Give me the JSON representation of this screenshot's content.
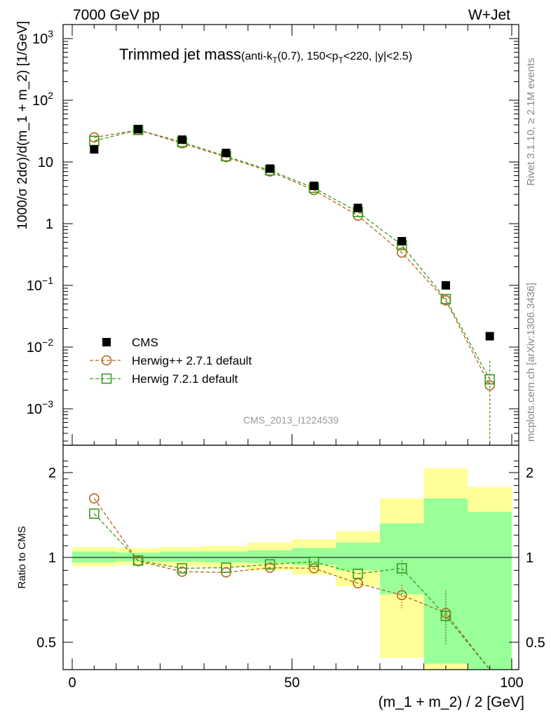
{
  "header": {
    "left": "7000 GeV pp",
    "right": "W+Jet"
  },
  "title": {
    "main": "Trimmed jet mass",
    "sub": "(anti-k",
    "sub_T": "T",
    "sub_rest1": "(0.7), 150<p",
    "sub_T2": "T",
    "sub_rest2": "<220, |y|<2.5)"
  },
  "side_labels": {
    "rivet": "Rivet 3.1.10, ≥ 2.1M events",
    "mcplots": "mcplots.cern.ch [arXiv:1306.3436]"
  },
  "analysis_id": "CMS_2013_I1224539",
  "axes": {
    "ylabel_top": "1000/σ 2dσ)/d(m_1 + m_2) [1/GeV]",
    "ylabel_ratio": "Ratio to CMS",
    "xlabel": "(m_1 + m_2) / 2 [GeV]",
    "x_ticks": [
      "0",
      "50",
      "100"
    ],
    "y_top_ticks": [
      {
        "base": "10",
        "exp": "3",
        "v": 1000
      },
      {
        "base": "10",
        "exp": "2",
        "v": 100
      },
      {
        "base": "10",
        "exp": "",
        "v": 10
      },
      {
        "base": "1",
        "exp": "",
        "v": 1
      },
      {
        "base": "10",
        "exp": "−1",
        "v": 0.1
      },
      {
        "base": "10",
        "exp": "−2",
        "v": 0.01
      },
      {
        "base": "10",
        "exp": "−3",
        "v": 0.001
      }
    ],
    "y_ratio_ticks": [
      "2",
      "1",
      "0.5"
    ]
  },
  "legend": [
    {
      "label": "CMS",
      "marker": "square-filled",
      "color": "#000000"
    },
    {
      "label": "Herwig++ 2.7.1 default",
      "marker": "circle-open",
      "color": "#b5651d"
    },
    {
      "label": "Herwig 7.2.1 default",
      "marker": "square-open",
      "color": "#3a9a1e"
    }
  ],
  "chart_data": {
    "type": "scatter",
    "x_range": [
      0,
      100
    ],
    "y_top_log": true,
    "y_top_range": [
      0.0003,
      1500
    ],
    "y_ratio_range": [
      0.35,
      2.3
    ],
    "x": [
      5,
      15,
      25,
      35,
      45,
      55,
      65,
      75,
      85,
      95
    ],
    "bin_edges": [
      0,
      10,
      20,
      30,
      40,
      50,
      60,
      70,
      80,
      90,
      100
    ],
    "series": [
      {
        "name": "CMS",
        "values": [
          16,
          34,
          23,
          14,
          7.8,
          4.1,
          1.8,
          0.52,
          0.1,
          0.015
        ]
      },
      {
        "name": "Herwig++ 2.7.1 default",
        "values": [
          25,
          33,
          20,
          12,
          7.0,
          3.5,
          1.35,
          0.34,
          0.057,
          0.0024
        ]
      },
      {
        "name": "Herwig 7.2.1 default",
        "values": [
          22,
          33,
          21,
          12.4,
          7.3,
          3.8,
          1.55,
          0.45,
          0.06,
          0.003
        ]
      }
    ],
    "ratio": [
      {
        "name": "Herwig++ 2.7.1 default",
        "values": [
          1.62,
          0.97,
          0.89,
          0.885,
          0.92,
          0.915,
          0.81,
          0.735,
          0.635,
          0.24
        ]
      },
      {
        "name": "Herwig 7.2.1 default",
        "values": [
          1.43,
          0.975,
          0.915,
          0.92,
          0.945,
          0.965,
          0.875,
          0.915,
          0.62,
          0.2
        ]
      }
    ],
    "band_stat": [
      [
        0.96,
        1.05
      ],
      [
        0.97,
        1.04
      ],
      [
        0.965,
        1.05
      ],
      [
        0.96,
        1.05
      ],
      [
        0.955,
        1.06
      ],
      [
        0.94,
        1.08
      ],
      [
        0.9,
        1.13
      ],
      [
        0.74,
        1.32
      ],
      [
        0.42,
        1.62
      ],
      [
        0.35,
        1.45
      ]
    ],
    "band_total": [
      [
        0.93,
        1.09
      ],
      [
        0.94,
        1.08
      ],
      [
        0.93,
        1.09
      ],
      [
        0.92,
        1.1
      ],
      [
        0.9,
        1.13
      ],
      [
        0.87,
        1.16
      ],
      [
        0.79,
        1.24
      ],
      [
        0.44,
        1.62
      ],
      [
        0.38,
        2.07
      ],
      [
        0.35,
        1.78
      ]
    ]
  }
}
